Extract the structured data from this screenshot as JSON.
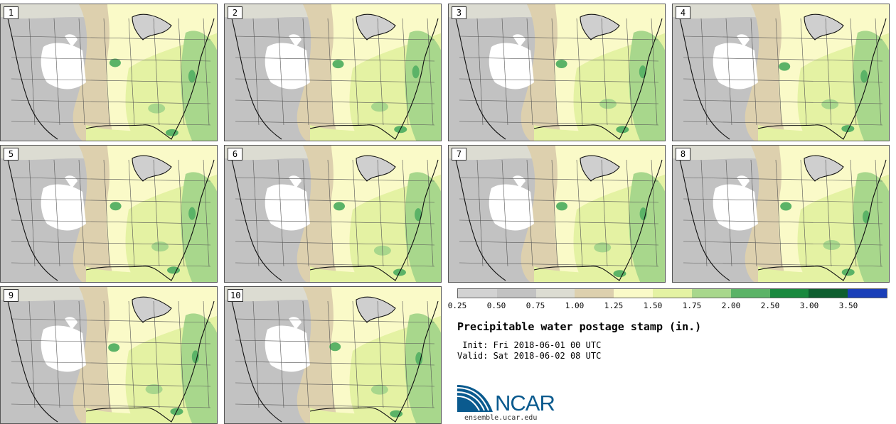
{
  "title": "Precipitable water postage stamp (in.)",
  "init": " Init: Fri 2018-06-01 00 UTC",
  "valid": "Valid: Sat 2018-06-02 08 UTC",
  "members": [
    "1",
    "2",
    "3",
    "4",
    "5",
    "6",
    "7",
    "8",
    "9",
    "10"
  ],
  "colorbar": {
    "colors": [
      "#d2d2d2",
      "#c2c2c2",
      "#dcdcd2",
      "#ddd0ae",
      "#fafac8",
      "#e4f2a3",
      "#a8d78c",
      "#5bb367",
      "#19893e",
      "#0e5e2f",
      "#1a3fb8"
    ],
    "tick_labels": [
      "0.25",
      "0.50",
      "0.75",
      "1.00",
      "1.25",
      "1.50",
      "1.75",
      "2.00",
      "2.50",
      "3.00",
      "3.50"
    ]
  },
  "logo": {
    "text": "NCAR",
    "url": "ensemble.ucar.edu"
  }
}
